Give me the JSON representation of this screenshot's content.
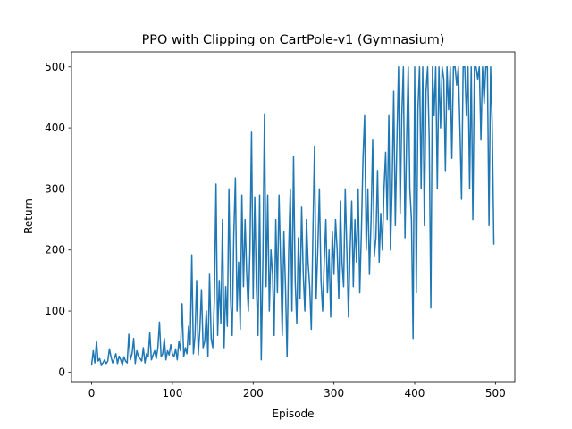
{
  "chart_data": {
    "type": "line",
    "title": "PPO with Clipping on CartPole-v1 (Gymnasium)",
    "x_label": "Episode",
    "y_label": "Return",
    "color": "#1f77b4",
    "xlim": [
      -24.95,
      523.95
    ],
    "ylim": [
      -15.55,
      524.55
    ],
    "xticks": [
      0,
      100,
      200,
      300,
      400,
      500
    ],
    "yticks": [
      0,
      100,
      200,
      300,
      400,
      500
    ],
    "x": [
      0,
      2,
      4,
      6,
      8,
      10,
      12,
      14,
      16,
      18,
      20,
      22,
      24,
      26,
      28,
      30,
      32,
      34,
      36,
      38,
      40,
      42,
      44,
      46,
      48,
      50,
      52,
      54,
      56,
      58,
      60,
      62,
      64,
      66,
      68,
      70,
      72,
      74,
      76,
      78,
      80,
      82,
      84,
      86,
      88,
      90,
      92,
      94,
      96,
      98,
      100,
      102,
      104,
      106,
      108,
      110,
      112,
      114,
      116,
      118,
      120,
      122,
      124,
      126,
      128,
      130,
      132,
      134,
      136,
      138,
      140,
      142,
      144,
      146,
      148,
      150,
      152,
      154,
      156,
      158,
      160,
      162,
      164,
      166,
      168,
      170,
      172,
      174,
      176,
      178,
      180,
      182,
      184,
      186,
      188,
      190,
      192,
      194,
      196,
      198,
      200,
      202,
      204,
      206,
      208,
      210,
      212,
      214,
      216,
      218,
      220,
      222,
      224,
      226,
      228,
      230,
      232,
      234,
      236,
      238,
      240,
      242,
      244,
      246,
      248,
      250,
      252,
      254,
      256,
      258,
      260,
      262,
      264,
      266,
      268,
      270,
      272,
      274,
      276,
      278,
      280,
      282,
      284,
      286,
      288,
      290,
      292,
      294,
      296,
      298,
      300,
      302,
      304,
      306,
      308,
      310,
      312,
      314,
      316,
      318,
      320,
      322,
      324,
      326,
      328,
      330,
      332,
      334,
      336,
      338,
      340,
      342,
      344,
      346,
      348,
      350,
      352,
      354,
      356,
      358,
      360,
      362,
      364,
      366,
      368,
      370,
      372,
      374,
      376,
      378,
      380,
      382,
      384,
      386,
      388,
      390,
      392,
      394,
      396,
      398,
      400,
      402,
      404,
      406,
      408,
      410,
      412,
      414,
      416,
      418,
      420,
      422,
      424,
      426,
      428,
      430,
      432,
      434,
      436,
      438,
      440,
      442,
      444,
      446,
      448,
      450,
      452,
      454,
      456,
      458,
      460,
      462,
      464,
      466,
      468,
      470,
      472,
      474,
      476,
      478,
      480,
      482,
      484,
      486,
      488,
      490,
      492,
      494,
      496,
      498
    ],
    "values": [
      12,
      35,
      15,
      50,
      18,
      22,
      12,
      15,
      20,
      14,
      18,
      38,
      25,
      15,
      22,
      30,
      14,
      26,
      20,
      12,
      25,
      18,
      15,
      62,
      20,
      30,
      55,
      14,
      35,
      25,
      22,
      18,
      40,
      15,
      30,
      25,
      65,
      20,
      28,
      35,
      22,
      40,
      82,
      25,
      30,
      55,
      20,
      35,
      28,
      45,
      30,
      25,
      38,
      20,
      50,
      35,
      112,
      25,
      40,
      30,
      75,
      45,
      192,
      30,
      60,
      150,
      28,
      70,
      135,
      40,
      50,
      100,
      25,
      160,
      55,
      40,
      120,
      308,
      60,
      150,
      80,
      250,
      40,
      140,
      75,
      300,
      120,
      60,
      225,
      318,
      100,
      180,
      70,
      290,
      140,
      250,
      160,
      100,
      200,
      393,
      120,
      287,
      140,
      60,
      290,
      20,
      180,
      423,
      140,
      290,
      100,
      200,
      160,
      60,
      250,
      130,
      290,
      180,
      60,
      230,
      140,
      25,
      200,
      300,
      100,
      353,
      150,
      80,
      220,
      120,
      270,
      160,
      100,
      250,
      180,
      140,
      70,
      230,
      370,
      120,
      200,
      300,
      150,
      100,
      180,
      250,
      130,
      200,
      90,
      230,
      160,
      250,
      200,
      120,
      280,
      180,
      140,
      300,
      200,
      90,
      200,
      280,
      140,
      250,
      180,
      300,
      130,
      230,
      350,
      420,
      200,
      300,
      160,
      250,
      380,
      190,
      220,
      330,
      180,
      260,
      200,
      300,
      360,
      250,
      420,
      200,
      300,
      460,
      240,
      380,
      500,
      260,
      420,
      500,
      220,
      380,
      500,
      300,
      250,
      55,
      500,
      130,
      430,
      500,
      300,
      500,
      240,
      460,
      500,
      380,
      105,
      500,
      420,
      500,
      300,
      500,
      400,
      500,
      480,
      330,
      500,
      430,
      500,
      350,
      500,
      500,
      470,
      500,
      400,
      283,
      500,
      500,
      420,
      500,
      300,
      500,
      250,
      500,
      500,
      480,
      500,
      380,
      500,
      440,
      500,
      500,
      240,
      500,
      405,
      209
    ]
  }
}
